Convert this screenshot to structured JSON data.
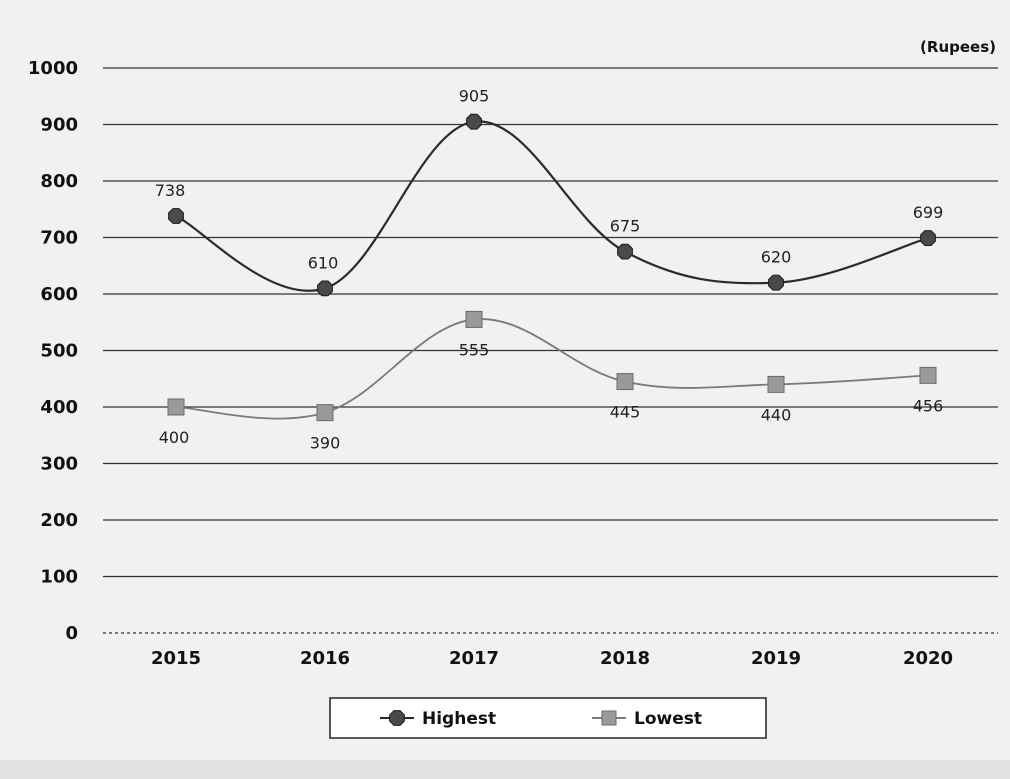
{
  "chart_data": {
    "type": "line",
    "title": "",
    "xlabel": "",
    "ylabel": "",
    "unit_label": "(Rupees)",
    "categories": [
      "2015",
      "2016",
      "2017",
      "2018",
      "2019",
      "2020"
    ],
    "ylim": [
      0,
      1000
    ],
    "yticks": [
      0,
      100,
      200,
      300,
      400,
      500,
      600,
      700,
      800,
      900,
      1000
    ],
    "grid": true,
    "legend_position": "bottom-center",
    "series": [
      {
        "name": "Highest",
        "values": [
          738,
          610,
          905,
          675,
          620,
          699
        ],
        "color": "#2b2b2b",
        "marker": "octagon"
      },
      {
        "name": "Lowest",
        "values": [
          400,
          390,
          555,
          445,
          440,
          456
        ],
        "color": "#7a7a7a",
        "marker": "square"
      }
    ],
    "data_labels": {
      "Highest": [
        "738",
        "610",
        "905",
        "675",
        "620",
        "699"
      ],
      "Lowest": [
        "400",
        "390",
        "555",
        "445",
        "440",
        "456"
      ]
    }
  }
}
